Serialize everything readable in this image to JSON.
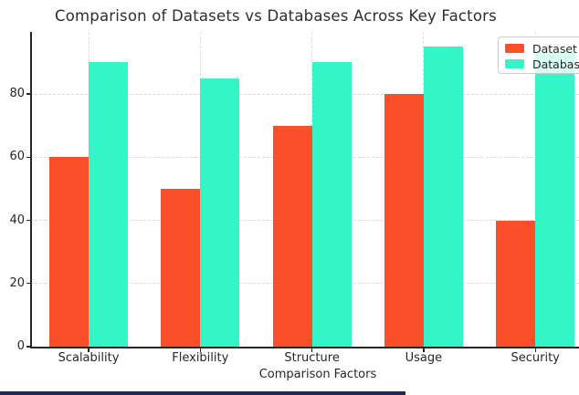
{
  "chart_data": {
    "type": "bar",
    "title": "Comparison of Datasets vs Databases Across Key Factors",
    "xlabel": "Comparison Factors",
    "ylabel": "",
    "categories": [
      "Scalability",
      "Flexibility",
      "Structure",
      "Usage",
      "Security"
    ],
    "series": [
      {
        "name": "Dataset",
        "color": "#FA4F28",
        "values": [
          60,
          50,
          70,
          80,
          40
        ]
      },
      {
        "name": "Database",
        "color": "#34F5C5",
        "values": [
          90,
          85,
          90,
          95,
          93
        ]
      }
    ],
    "ylim": [
      0,
      100
    ],
    "y_ticks": [
      0,
      20,
      40,
      60,
      80
    ],
    "grid": "dashed, horizontal and vertical",
    "legend_position": "upper right, clipped at right edge of image"
  },
  "legend": {
    "items": [
      {
        "label": "Dataset",
        "color": "#FA4F28"
      },
      {
        "label": "Database",
        "color": "#34F5C5"
      }
    ]
  },
  "colors": {
    "background": "#ffffff",
    "grid": "#d9d9d9",
    "spine": "#262626",
    "text": "#262626",
    "legend_border": "#cccccc",
    "footer_strip": "#20295e"
  }
}
